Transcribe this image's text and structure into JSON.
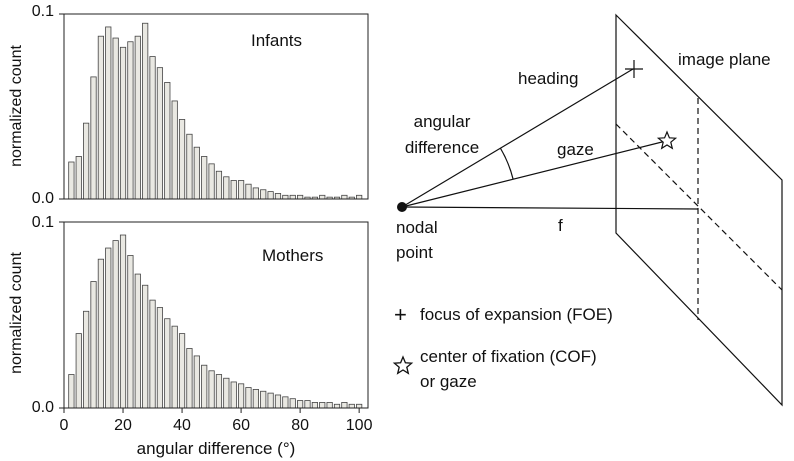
{
  "chart_data": [
    {
      "type": "bar",
      "label": "Infants",
      "ylabel": "normalized count",
      "xlabel": "",
      "xlim": [
        0,
        103
      ],
      "ylim": [
        0,
        0.1
      ],
      "ytick_labels": [
        "0.0",
        "0.1"
      ],
      "bin_width": 2.5,
      "x": [
        2.5,
        5,
        7.5,
        10,
        12.5,
        15,
        17.5,
        20,
        22.5,
        25,
        27.5,
        30,
        32.5,
        35,
        37.5,
        40,
        42.5,
        45,
        47.5,
        50,
        52.5,
        55,
        57.5,
        60,
        62.5,
        65,
        67.5,
        70,
        72.5,
        75,
        77.5,
        80,
        82.5,
        85,
        87.5,
        90,
        92.5,
        95,
        97.5,
        100
      ],
      "values": [
        0.02,
        0.023,
        0.041,
        0.066,
        0.088,
        0.093,
        0.087,
        0.082,
        0.085,
        0.088,
        0.095,
        0.077,
        0.071,
        0.063,
        0.053,
        0.043,
        0.035,
        0.028,
        0.023,
        0.019,
        0.015,
        0.012,
        0.01,
        0.01,
        0.008,
        0.006,
        0.005,
        0.004,
        0.003,
        0.002,
        0.002,
        0.002,
        0.001,
        0.001,
        0.002,
        0.001,
        0.001,
        0.002,
        0.001,
        0.002
      ]
    },
    {
      "type": "bar",
      "label": "Mothers",
      "ylabel": "normalized count",
      "xlabel": "angular difference (°)",
      "xlim": [
        0,
        103
      ],
      "ylim": [
        0,
        0.1
      ],
      "xtick_labels": [
        "0",
        "20",
        "40",
        "60",
        "80",
        "100"
      ],
      "ytick_labels": [
        "0.0",
        "0.1"
      ],
      "bin_width": 2.5,
      "x": [
        2.5,
        5,
        7.5,
        10,
        12.5,
        15,
        17.5,
        20,
        22.5,
        25,
        27.5,
        30,
        32.5,
        35,
        37.5,
        40,
        42.5,
        45,
        47.5,
        50,
        52.5,
        55,
        57.5,
        60,
        62.5,
        65,
        67.5,
        70,
        72.5,
        75,
        77.5,
        80,
        82.5,
        85,
        87.5,
        90,
        92.5,
        95,
        97.5,
        100
      ],
      "values": [
        0.018,
        0.04,
        0.052,
        0.068,
        0.08,
        0.086,
        0.09,
        0.093,
        0.082,
        0.072,
        0.066,
        0.058,
        0.054,
        0.048,
        0.044,
        0.04,
        0.032,
        0.028,
        0.023,
        0.02,
        0.018,
        0.016,
        0.014,
        0.013,
        0.011,
        0.01,
        0.009,
        0.008,
        0.007,
        0.006,
        0.005,
        0.004,
        0.004,
        0.003,
        0.003,
        0.003,
        0.002,
        0.003,
        0.002,
        0.002
      ]
    }
  ],
  "diagram": {
    "labels": {
      "heading": "heading",
      "image_plane": "image plane",
      "angular_difference_line1": "angular",
      "angular_difference_line2": "difference",
      "gaze": "gaze",
      "nodal_line1": "nodal",
      "nodal_line2": "point",
      "f": "f"
    },
    "legend": {
      "foe_symbol": "+",
      "foe_text": "focus of expansion (FOE)",
      "cof_text_line1": "center of fixation (COF)",
      "cof_text_line2": "or gaze"
    }
  }
}
